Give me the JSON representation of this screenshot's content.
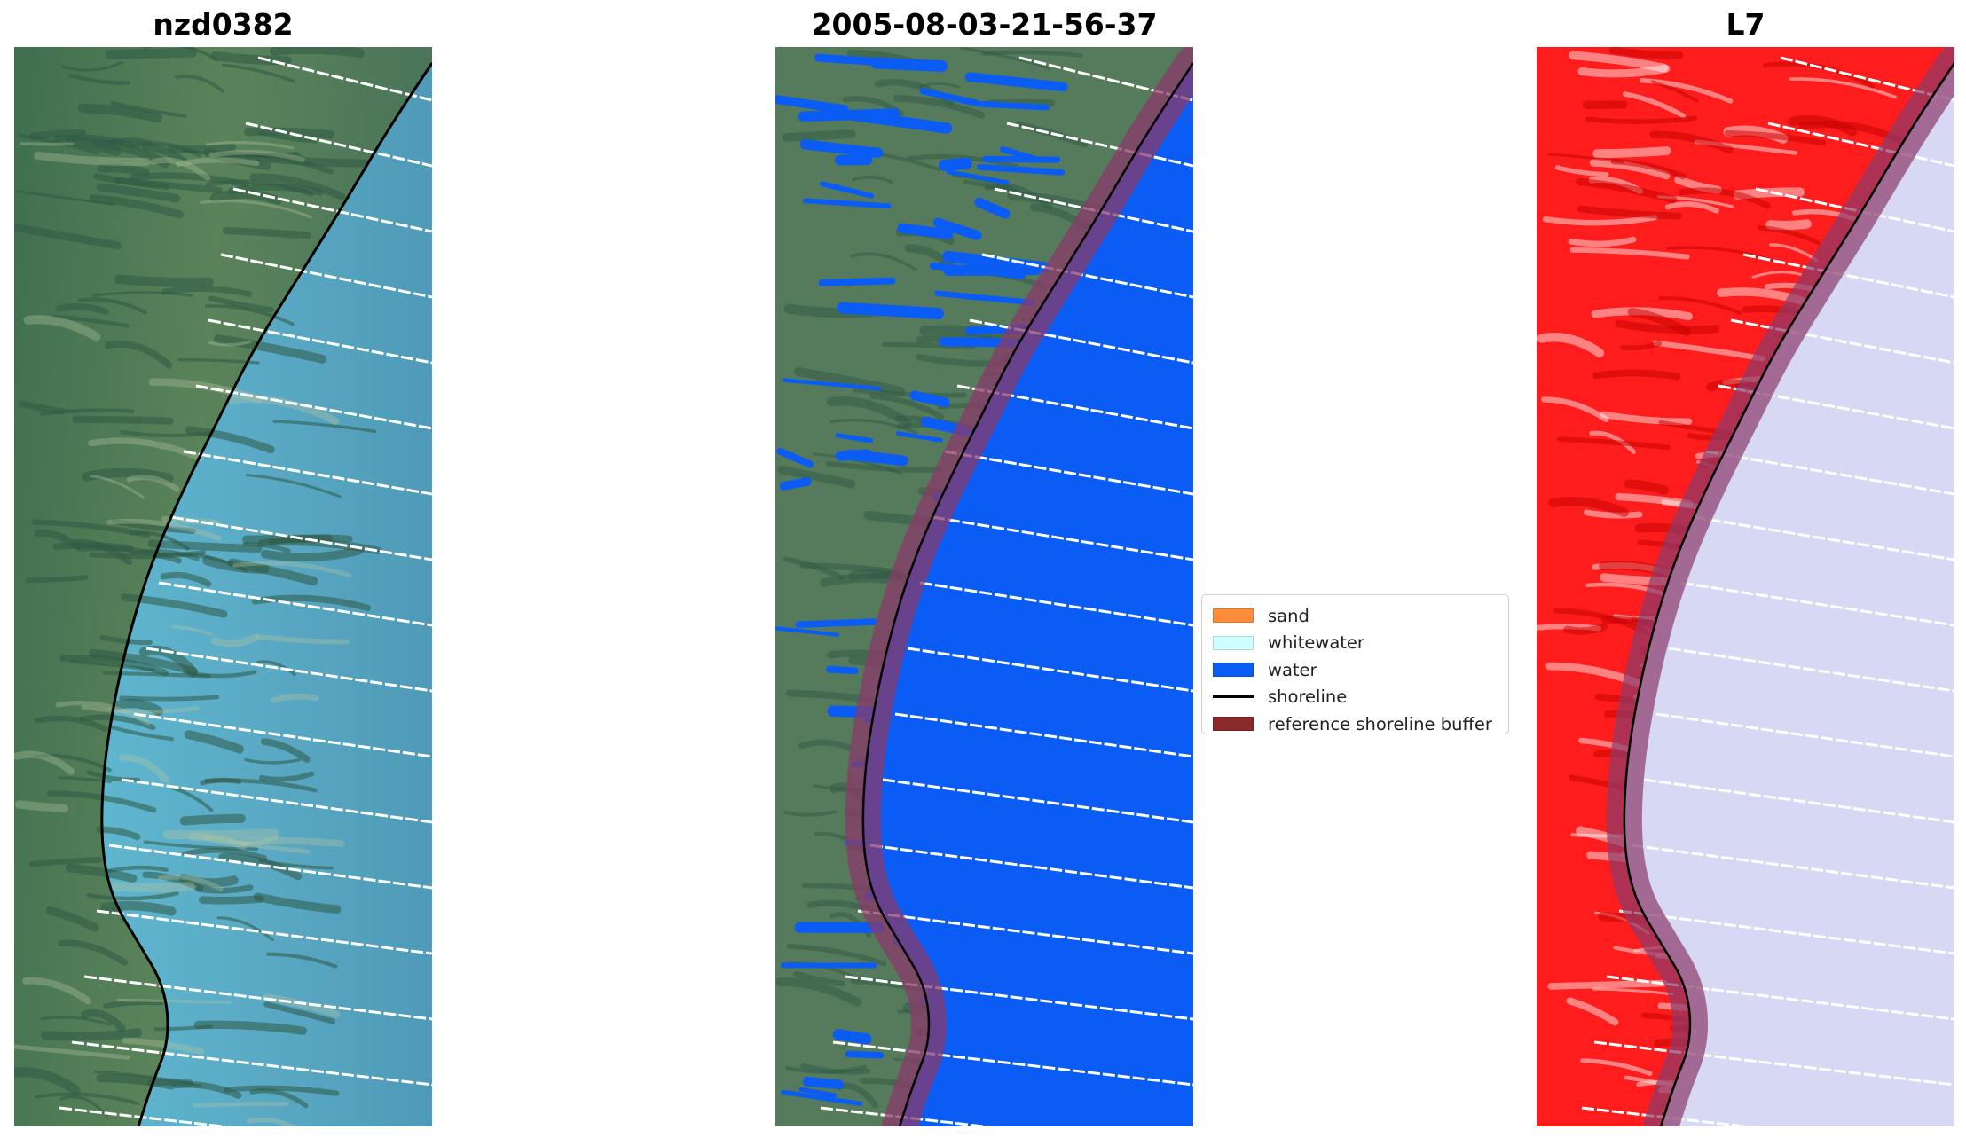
{
  "panels": [
    {
      "title": "nzd0382"
    },
    {
      "title": "2005-08-03-21-56-37"
    },
    {
      "title": "L7"
    }
  ],
  "legend": {
    "items": [
      {
        "label": "sand",
        "color": "#ff8c3a",
        "kind": "patch"
      },
      {
        "label": "whitewater",
        "color": "#ccffff",
        "kind": "patch"
      },
      {
        "label": "water",
        "color": "#0a5cf5",
        "kind": "patch"
      },
      {
        "label": "shoreline",
        "color": "#000000",
        "kind": "line"
      },
      {
        "label": "reference shoreline buffer",
        "color": "#8b2a2a",
        "kind": "patch"
      }
    ]
  },
  "colors": {
    "land_rgb": "#4f7757",
    "sea_rgb": "#58acc6",
    "water_class": "#0a5cf5",
    "buffer": "#8a3a6a",
    "land_nir": "#ff1a1a",
    "sea_nir": "#d6d8f4",
    "scanline_gap": "#ffffff"
  }
}
